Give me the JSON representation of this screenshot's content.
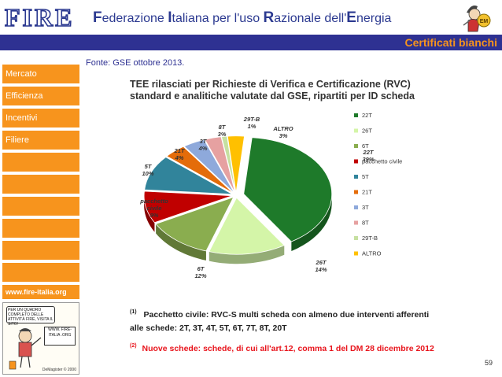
{
  "header": {
    "logo_text": "FIRE",
    "title_parts": [
      {
        "cap": "F",
        "rest": "ederazione "
      },
      {
        "cap": "I",
        "rest": "taliana per l'uso "
      },
      {
        "cap": "R",
        "rest": "azionale dell'"
      },
      {
        "cap": "E",
        "rest": "nergia"
      }
    ],
    "section": "Certificati bianchi",
    "mascot_badge": "EM"
  },
  "sidebar": {
    "items": [
      {
        "label": "Mercato"
      },
      {
        "label": "Efficienza"
      },
      {
        "label": "Incentivi"
      },
      {
        "label": "Filiere"
      }
    ],
    "site": "www.fire-italia.org",
    "cartoon_sign": "PER UN QUADRO COMPLETO DELLE ATTIVITÀ FIRE, VISITA IL SITO!",
    "cartoon_sign2": "WWW. FIRE-ITALIA .ORG",
    "cartoon_signature": "DeMagister © 2000"
  },
  "main": {
    "source": "Fonte: GSE ottobre 2013.",
    "title_line1": "TEE rilasciati per Richieste di Verifica e Certificazione (RVC)",
    "title_line2": "standard e analitiche valutate dal GSE, ripartiti per ID scheda",
    "note1_marker": "(1)",
    "note1_line1": "Pacchetto civile:  RVC-S multi scheda con almeno due interventi afferenti",
    "note1_line2": "alle schede: 2T, 3T, 4T, 5T, 6T, 7T, 8T, 20T",
    "note2_marker": "(2)",
    "note2_text": "Nuove schede: schede, di cui all'art.12, comma 1 del DM 28 dicembre 2012",
    "note_color": "#222222",
    "note2_color": "#e8141c",
    "page_number": "59"
  },
  "chart_data": {
    "type": "pie",
    "title": "TEE rilasciati per Richieste di Verifica e Certificazione (RVC) standard e analitiche valutate dal GSE, ripartiti per ID scheda",
    "slices": [
      {
        "label": "22T",
        "value": 39,
        "color": "#1e7a2a",
        "legend": "22T",
        "pie_label": [
          "22T",
          "39%"
        ]
      },
      {
        "label": "26T",
        "value": 14,
        "color": "#d4f5a8",
        "legend": "26T",
        "pie_label": [
          "26T",
          "14%"
        ]
      },
      {
        "label": "6T",
        "value": 12,
        "color": "#8aad4f",
        "legend": "6T",
        "pie_label": [
          "6T",
          "12%"
        ]
      },
      {
        "label": "pacchetto civile",
        "value": 9,
        "color": "#c00000",
        "legend": "pacchetto civile",
        "pie_label": [
          "pacchetto",
          "civile",
          "9%"
        ]
      },
      {
        "label": "5T",
        "value": 10,
        "color": "#31849b",
        "legend": "5T",
        "pie_label": [
          "5T",
          "10%"
        ]
      },
      {
        "label": "21T",
        "value": 4,
        "color": "#e46c0a",
        "legend": "21T",
        "pie_label": [
          "21T",
          "4%"
        ]
      },
      {
        "label": "3T",
        "value": 4,
        "color": "#8ea9db",
        "legend": "3T",
        "pie_label": [
          "3T",
          "4%"
        ]
      },
      {
        "label": "8T",
        "value": 3,
        "color": "#e6a1a1",
        "legend": "8T",
        "pie_label": [
          "8T",
          "3%"
        ]
      },
      {
        "label": "29T-B",
        "value": 1,
        "color": "#c6e0a0",
        "legend": "29T-B",
        "pie_label": [
          "29T-B",
          "1%"
        ]
      },
      {
        "label": "ALTRO",
        "value": 3,
        "color": "#ffc000",
        "legend": "ALTRO",
        "pie_label": [
          "ALTRO",
          "3%"
        ]
      }
    ],
    "legend_position": "right"
  }
}
